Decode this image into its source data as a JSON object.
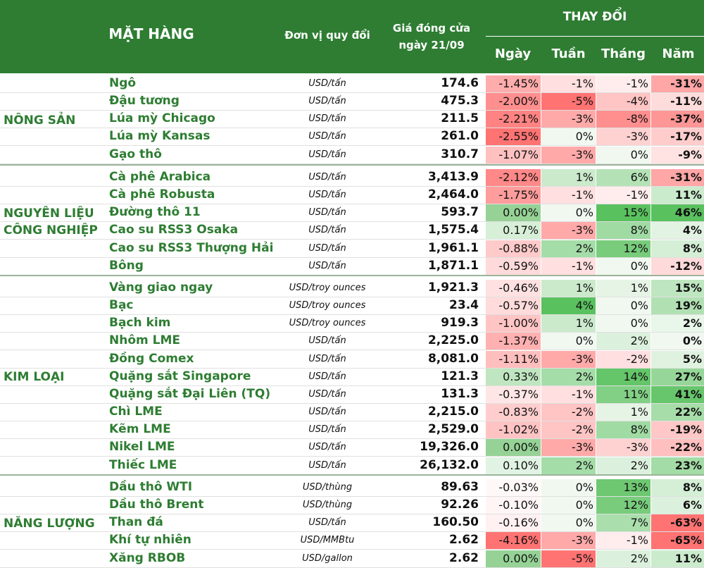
{
  "header": {
    "mat_hang": "MẶT HÀNG",
    "don_vi": "Đơn vị quy đổi",
    "gia_line1": "Giá đóng cửa",
    "gia_line2": "ngày 21/09",
    "thay_doi": "THAY ĐỔI",
    "ngay": "Ngày",
    "tuan": "Tuần",
    "thang": "Tháng",
    "nam": "Năm"
  },
  "groups": [
    {
      "line1": "NÔNG SẢN",
      "line2": ""
    },
    {
      "line1": "NGUYÊN LIỆU",
      "line2": "CÔNG NGHIỆP"
    },
    {
      "line1": "KIM LOẠI",
      "line2": ""
    },
    {
      "line1": "NĂNG LƯỢNG",
      "line2": ""
    }
  ],
  "rows": [
    {
      "name": "Ngô",
      "unit": "USD/tấn",
      "price": "174.6",
      "d": "-1.45%",
      "w": "-1%",
      "m": "-1%",
      "y": "-31%"
    },
    {
      "name": "Đậu tương",
      "unit": "USD/tấn",
      "price": "475.3",
      "d": "-2.00%",
      "w": "-5%",
      "m": "-4%",
      "y": "-11%"
    },
    {
      "name": "Lúa mỳ Chicago",
      "unit": "USD/tấn",
      "price": "211.5",
      "d": "-2.21%",
      "w": "-3%",
      "m": "-8%",
      "y": "-37%"
    },
    {
      "name": "Lúa mỳ Kansas",
      "unit": "USD/tấn",
      "price": "261.0",
      "d": "-2.55%",
      "w": "0%",
      "m": "-3%",
      "y": "-17%"
    },
    {
      "name": "Gạo thô",
      "unit": "USD/tấn",
      "price": "310.7",
      "d": "-1.07%",
      "w": "-3%",
      "m": "0%",
      "y": "-9%"
    },
    {
      "name": "Cà phê Arabica",
      "unit": "USD/tấn",
      "price": "3,413.9",
      "d": "-2.12%",
      "w": "1%",
      "m": "6%",
      "y": "-31%"
    },
    {
      "name": "Cà phê Robusta",
      "unit": "USD/tấn",
      "price": "2,464.0",
      "d": "-1.75%",
      "w": "-1%",
      "m": "-1%",
      "y": "11%"
    },
    {
      "name": "Đường thô 11",
      "unit": "USD/tấn",
      "price": "593.7",
      "d": "0.00%",
      "w": "0%",
      "m": "15%",
      "y": "46%"
    },
    {
      "name": "Cao su RSS3 Osaka",
      "unit": "USD/tấn",
      "price": "1,575.4",
      "d": "0.17%",
      "w": "-3%",
      "m": "8%",
      "y": "4%"
    },
    {
      "name": "Cao su RSS3 Thượng Hải",
      "unit": "USD/tấn",
      "price": "1,961.1",
      "d": "-0.88%",
      "w": "2%",
      "m": "12%",
      "y": "8%"
    },
    {
      "name": "Bông",
      "unit": "USD/tấn",
      "price": "1,871.1",
      "d": "-0.59%",
      "w": "-1%",
      "m": "0%",
      "y": "-12%"
    },
    {
      "name": "Vàng giao ngay",
      "unit": "USD/troy ounces",
      "price": "1,921.3",
      "d": "-0.46%",
      "w": "1%",
      "m": "1%",
      "y": "15%"
    },
    {
      "name": "Bạc",
      "unit": "USD/troy ounces",
      "price": "23.4",
      "d": "-0.57%",
      "w": "4%",
      "m": "0%",
      "y": "19%"
    },
    {
      "name": "Bạch kim",
      "unit": "USD/troy ounces",
      "price": "919.3",
      "d": "-1.00%",
      "w": "1%",
      "m": "0%",
      "y": "2%"
    },
    {
      "name": "Nhôm LME",
      "unit": "USD/tấn",
      "price": "2,225.0",
      "d": "-1.37%",
      "w": "0%",
      "m": "2%",
      "y": "0%"
    },
    {
      "name": "Đồng Comex",
      "unit": "USD/tấn",
      "price": "8,081.0",
      "d": "-1.11%",
      "w": "-3%",
      "m": "-2%",
      "y": "5%"
    },
    {
      "name": "Quặng sắt Singapore",
      "unit": "USD/tấn",
      "price": "121.3",
      "d": "0.33%",
      "w": "2%",
      "m": "14%",
      "y": "27%"
    },
    {
      "name": "Quặng sắt Đại Liên (TQ)",
      "unit": "USD/tấn",
      "price": "131.3",
      "d": "-0.37%",
      "w": "-1%",
      "m": "11%",
      "y": "41%"
    },
    {
      "name": "Chì LME",
      "unit": "USD/tấn",
      "price": "2,215.0",
      "d": "-0.83%",
      "w": "-2%",
      "m": "1%",
      "y": "22%"
    },
    {
      "name": "Kẽm LME",
      "unit": "USD/tấn",
      "price": "2,529.0",
      "d": "-1.02%",
      "w": "-2%",
      "m": "8%",
      "y": "-19%"
    },
    {
      "name": "Nikel LME",
      "unit": "USD/tấn",
      "price": "19,326.0",
      "d": "0.00%",
      "w": "-3%",
      "m": "-3%",
      "y": "-22%"
    },
    {
      "name": "Thiếc LME",
      "unit": "USD/tấn",
      "price": "26,132.0",
      "d": "0.10%",
      "w": "2%",
      "m": "2%",
      "y": "23%"
    },
    {
      "name": "Dầu thô WTI",
      "unit": "USD/thùng",
      "price": "89.63",
      "d": "-0.03%",
      "w": "0%",
      "m": "13%",
      "y": "8%"
    },
    {
      "name": "Dầu thô Brent",
      "unit": "USD/thùng",
      "price": "92.26",
      "d": "-0.10%",
      "w": "0%",
      "m": "12%",
      "y": "6%"
    },
    {
      "name": "Than đá",
      "unit": "USD/tấn",
      "price": "160.50",
      "d": "-0.16%",
      "w": "0%",
      "m": "7%",
      "y": "-63%"
    },
    {
      "name": "Khí tự nhiên",
      "unit": "USD/MMBtu",
      "price": "2.62",
      "d": "-4.16%",
      "w": "-3%",
      "m": "-1%",
      "y": "-65%"
    },
    {
      "name": "Xăng RBOB",
      "unit": "USD/gallon",
      "price": "2.62",
      "d": "0.00%",
      "w": "-5%",
      "m": "2%",
      "y": "11%"
    }
  ]
}
